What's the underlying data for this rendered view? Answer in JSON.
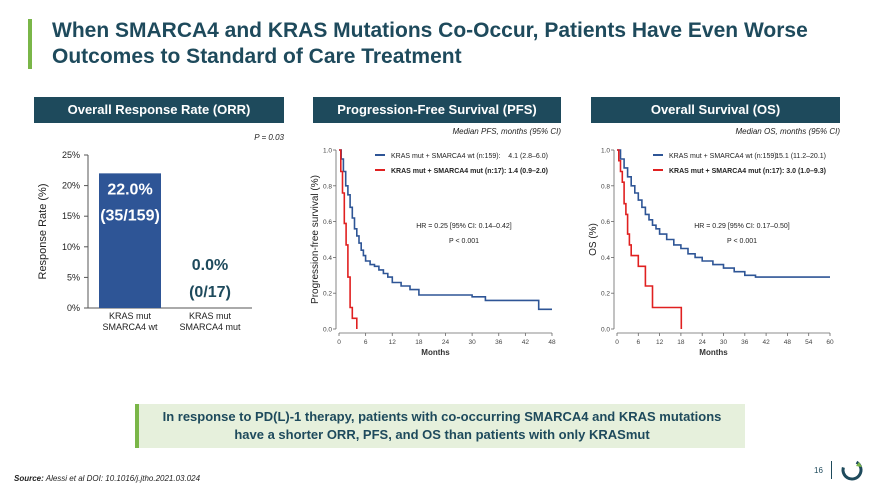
{
  "slide": {
    "title": "When SMARCA4 and KRAS Mutations Co-Occur, Patients Have Even Worse Outcomes to Standard of Care Treatment",
    "accent_color": "#7ab648",
    "brand_color": "#1e4a5c",
    "callout": "In response to PD(L)-1 therapy, patients with co-occurring SMARCA4 and KRAS mutations have a shorter ORR, PFS, and OS than patients with only KRASmut",
    "source_label": "Source:",
    "source_text": "Alessi et al DOI: 10.1016/j.jtho.2021.03.024",
    "page_number": "16",
    "logo_icon": "circular-arrow-logo-icon"
  },
  "panels": {
    "orr": {
      "header": "Overall Response Rate (ORR)",
      "note": "P = 0.03"
    },
    "pfs": {
      "header": "Progression-Free Survival (PFS)",
      "note": "Median PFS, months (95% CI)"
    },
    "os": {
      "header": "Overall Survival (OS)",
      "note": "Median OS, months (95% CI)"
    }
  },
  "chart_data": [
    {
      "type": "bar",
      "ylabel": "Response Rate  (%)",
      "ylim": [
        0,
        25
      ],
      "yticks": [
        "0%",
        "5%",
        "10%",
        "15%",
        "20%",
        "25%"
      ],
      "categories": [
        [
          "KRAS mut",
          "SMARCA4 wt"
        ],
        [
          "KRAS mut",
          "SMARCA4 mut"
        ]
      ],
      "values": [
        22.0,
        0.0
      ],
      "data_labels": [
        [
          "22.0%",
          "(35/159)"
        ],
        [
          "0.0%",
          "(0/17)"
        ]
      ],
      "bar_color": "#2e5596"
    },
    {
      "type": "line",
      "xlabel": "Months",
      "ylabel": "Progression-free survival (%)",
      "xlim": [
        0,
        48
      ],
      "ylim": [
        0,
        1.0
      ],
      "xticks": [
        "0",
        "6",
        "12",
        "18",
        "24",
        "30",
        "36",
        "42",
        "48"
      ],
      "yticks": [
        "0.0",
        "0.2",
        "0.4",
        "0.6",
        "0.8",
        "1.0"
      ],
      "legend": [
        {
          "label": "KRAS mut + SMARCA4 wt (n:159):",
          "value": "4.1 (2.8–6.0)",
          "bold": false
        },
        {
          "label": "KRAS mut + SMARCA4 mut (n:17):",
          "value": "1.4 (0.9–2.0)",
          "bold": true
        }
      ],
      "annotations": [
        "HR = 0.25 [95% CI: 0.14–0.42]",
        "P < 0.001"
      ],
      "series": [
        {
          "color": "#2e5596",
          "x": [
            0,
            0.5,
            1,
            1.5,
            2,
            2.5,
            3,
            3.5,
            4,
            4.5,
            5,
            5.5,
            6,
            7,
            8,
            9,
            10,
            11,
            12,
            14,
            16,
            18,
            21,
            24,
            27,
            30,
            33,
            36,
            42,
            45,
            48
          ],
          "y": [
            1.0,
            0.95,
            0.88,
            0.8,
            0.75,
            0.68,
            0.62,
            0.56,
            0.52,
            0.48,
            0.44,
            0.41,
            0.38,
            0.36,
            0.35,
            0.33,
            0.31,
            0.29,
            0.26,
            0.24,
            0.22,
            0.19,
            0.19,
            0.19,
            0.19,
            0.18,
            0.16,
            0.16,
            0.16,
            0.11,
            0.11
          ]
        },
        {
          "color": "#e02020",
          "x": [
            0,
            0.4,
            0.8,
            1.2,
            1.6,
            2,
            2.5,
            3,
            4
          ],
          "y": [
            1.0,
            0.88,
            0.76,
            0.59,
            0.47,
            0.29,
            0.12,
            0.06,
            0.0
          ]
        }
      ]
    },
    {
      "type": "line",
      "xlabel": "Months",
      "ylabel": "OS (%)",
      "xlim": [
        0,
        60
      ],
      "ylim": [
        0,
        1.0
      ],
      "xticks": [
        "0",
        "6",
        "12",
        "18",
        "24",
        "30",
        "36",
        "42",
        "48",
        "54",
        "60"
      ],
      "yticks": [
        "0.0",
        "0.2",
        "0.4",
        "0.6",
        "0.8",
        "1.0"
      ],
      "legend": [
        {
          "label": "KRAS mut + SMARCA4 wt (n:159):",
          "value": "15.1 (11.2–20.1)",
          "bold": false
        },
        {
          "label": "KRAS mut + SMARCA4 mut (n:17):",
          "value": "3.0 (1.0–9.3)",
          "bold": true
        }
      ],
      "annotations": [
        "HR = 0.29 [95% CI: 0.17–0.50]",
        "P < 0.001"
      ],
      "series": [
        {
          "color": "#2e5596",
          "x": [
            0,
            1,
            2,
            3,
            4,
            5,
            6,
            7,
            8,
            9,
            10,
            11,
            12,
            14,
            16,
            18,
            20,
            22,
            24,
            27,
            30,
            33,
            36,
            39,
            42,
            48,
            54,
            60
          ],
          "y": [
            1.0,
            0.95,
            0.9,
            0.85,
            0.8,
            0.76,
            0.72,
            0.68,
            0.64,
            0.61,
            0.58,
            0.56,
            0.53,
            0.5,
            0.47,
            0.45,
            0.42,
            0.4,
            0.38,
            0.36,
            0.34,
            0.32,
            0.3,
            0.29,
            0.29,
            0.29,
            0.29,
            0.29
          ]
        },
        {
          "color": "#e02020",
          "x": [
            0,
            0.5,
            1,
            1.5,
            2,
            2.5,
            3,
            3.5,
            4,
            6,
            8,
            10,
            12,
            14,
            16,
            18,
            18.1
          ],
          "y": [
            1.0,
            0.94,
            0.88,
            0.82,
            0.7,
            0.64,
            0.53,
            0.47,
            0.41,
            0.35,
            0.24,
            0.12,
            0.12,
            0.12,
            0.12,
            0.12,
            0.0
          ]
        }
      ]
    }
  ]
}
